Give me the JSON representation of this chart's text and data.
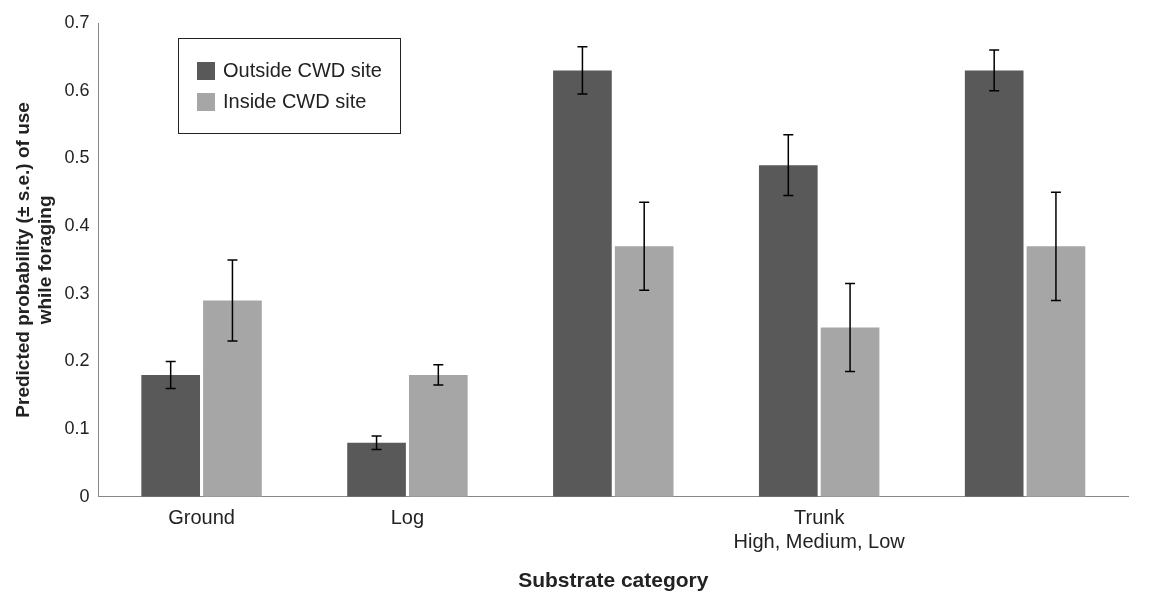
{
  "chart_data": {
    "type": "bar",
    "xlabel": "Substrate category",
    "ylabel": "Predicted probability (± s.e.) of use\nwhile foraging",
    "categories": [
      "Ground",
      "Log",
      null,
      "Trunk\nHigh, Medium, Low",
      null
    ],
    "series": [
      {
        "name": "Outside CWD site",
        "color": "#595959",
        "values": [
          0.18,
          0.08,
          0.63,
          0.49,
          0.63
        ],
        "errors": [
          0.02,
          0.01,
          0.035,
          0.045,
          0.03
        ]
      },
      {
        "name": "Inside CWD site",
        "color": "#a6a6a6",
        "values": [
          0.29,
          0.18,
          0.37,
          0.25,
          0.37
        ],
        "errors": [
          0.06,
          0.015,
          0.065,
          0.065,
          0.08
        ]
      }
    ],
    "ylim": [
      0,
      0.7
    ],
    "yticks": [
      0,
      0.1,
      0.2,
      0.3,
      0.4,
      0.5,
      0.6,
      0.7
    ],
    "grid": false,
    "legend": "top left"
  }
}
